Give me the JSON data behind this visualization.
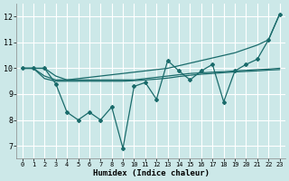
{
  "title": "",
  "xlabel": "Humidex (Indice chaleur)",
  "background_color": "#cce8e8",
  "grid_color": "#b0d4d4",
  "line_color": "#1a6b6b",
  "x": [
    0,
    1,
    2,
    3,
    4,
    5,
    6,
    7,
    8,
    9,
    10,
    11,
    12,
    13,
    14,
    15,
    16,
    17,
    18,
    19,
    20,
    21,
    22,
    23
  ],
  "line_jagged": [
    10.0,
    10.0,
    10.0,
    9.4,
    8.3,
    8.0,
    8.3,
    8.0,
    8.5,
    6.9,
    9.3,
    9.45,
    8.8,
    10.3,
    9.9,
    9.55,
    9.9,
    10.15,
    8.7,
    9.9,
    10.15,
    10.35,
    11.1,
    12.1
  ],
  "line_upper": [
    10.0,
    10.0,
    10.0,
    9.7,
    9.55,
    9.6,
    9.65,
    9.7,
    9.75,
    9.8,
    9.85,
    9.9,
    9.95,
    10.0,
    10.1,
    10.2,
    10.3,
    10.4,
    10.5,
    10.6,
    10.75,
    10.9,
    11.1,
    12.1
  ],
  "line_flat1": [
    10.0,
    10.0,
    9.7,
    9.55,
    9.55,
    9.55,
    9.55,
    9.55,
    9.55,
    9.55,
    9.55,
    9.6,
    9.65,
    9.7,
    9.75,
    9.8,
    9.82,
    9.85,
    9.87,
    9.9,
    9.92,
    9.95,
    9.97,
    10.0
  ],
  "line_flat2": [
    10.0,
    10.0,
    9.6,
    9.5,
    9.5,
    9.5,
    9.5,
    9.5,
    9.5,
    9.5,
    9.52,
    9.55,
    9.58,
    9.62,
    9.68,
    9.73,
    9.77,
    9.8,
    9.83,
    9.86,
    9.88,
    9.9,
    9.93,
    9.95
  ],
  "ylim": [
    6.5,
    12.5
  ],
  "xlim": [
    -0.5,
    23.5
  ],
  "yticks": [
    7,
    8,
    9,
    10,
    11,
    12
  ],
  "xticks": [
    0,
    1,
    2,
    3,
    4,
    5,
    6,
    7,
    8,
    9,
    10,
    11,
    12,
    13,
    14,
    15,
    16,
    17,
    18,
    19,
    20,
    21,
    22,
    23
  ]
}
